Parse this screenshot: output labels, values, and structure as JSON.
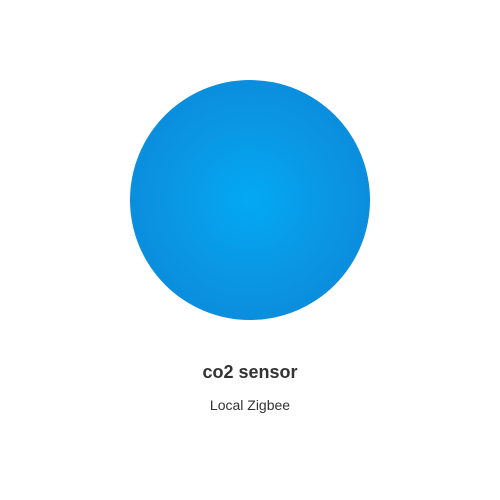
{
  "device": {
    "name": "co2 sensor",
    "integration": "Local Zigbee",
    "icon": "circle-icon",
    "icon_color": "#03a9f4"
  }
}
